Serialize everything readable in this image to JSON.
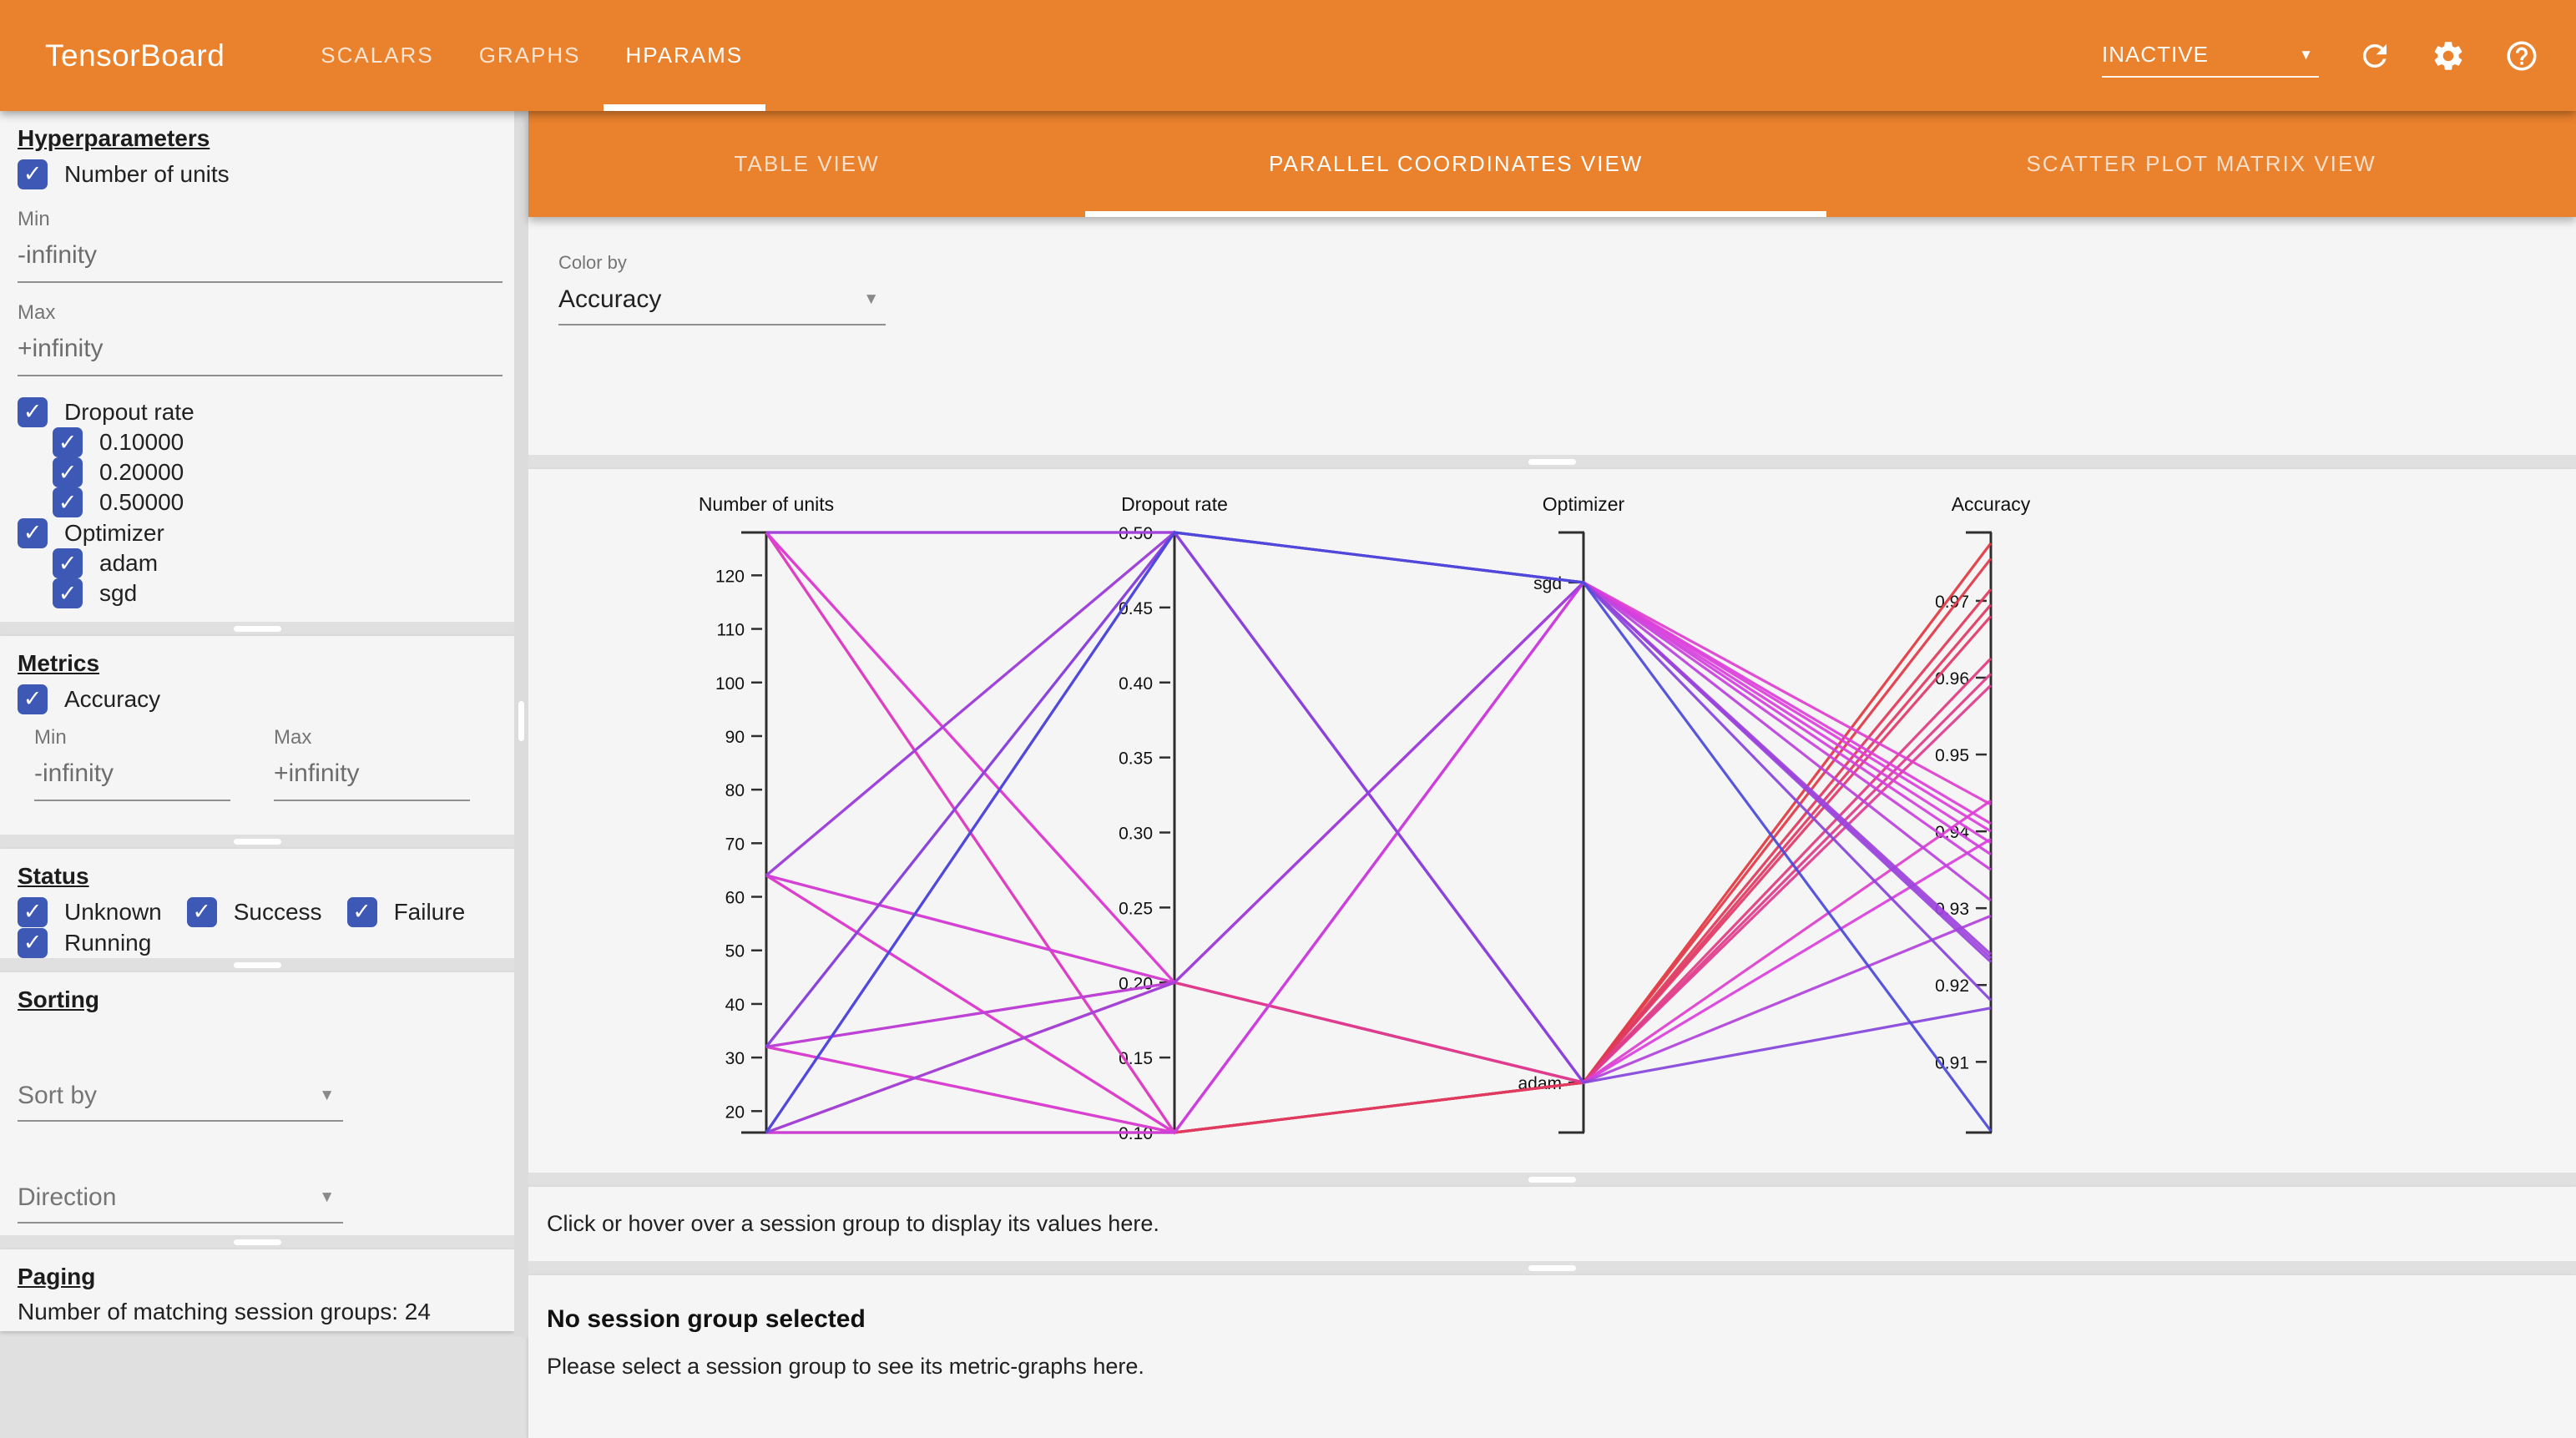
{
  "theme": {
    "header_orange": "#E9812D",
    "checkbox_blue": "#3D59B5",
    "line_color_low": "#4545DC",
    "line_color_high": "#DE5A4E",
    "panel_gray": "#f5f5f5"
  },
  "header": {
    "title": "TensorBoard",
    "tabs": [
      {
        "label": "SCALARS"
      },
      {
        "label": "GRAPHS"
      },
      {
        "label": "HPARAMS"
      }
    ],
    "active_tab": "HPARAMS",
    "run_status": "INACTIVE",
    "icons": [
      "reload-icon",
      "settings-icon",
      "help-icon"
    ]
  },
  "sidebar": {
    "hyperparameters": {
      "heading": "Hyperparameters",
      "num_units": {
        "label": "Number of units",
        "checked": true,
        "min_label": "Min",
        "min_value": "-infinity",
        "max_label": "Max",
        "max_value": "+infinity"
      },
      "dropout": {
        "label": "Dropout rate",
        "checked": true,
        "options": [
          "0.10000",
          "0.20000",
          "0.50000"
        ]
      },
      "optimizer": {
        "label": "Optimizer",
        "checked": true,
        "options": [
          "adam",
          "sgd"
        ]
      }
    },
    "metrics": {
      "heading": "Metrics",
      "accuracy_label": "Accuracy",
      "checked": true,
      "min_label": "Min",
      "min_value": "-infinity",
      "max_label": "Max",
      "max_value": "+infinity"
    },
    "status": {
      "heading": "Status",
      "options": [
        "Unknown",
        "Success",
        "Failure",
        "Running"
      ]
    },
    "sorting": {
      "heading": "Sorting",
      "sort_by_placeholder": "Sort by",
      "direction_placeholder": "Direction"
    },
    "paging": {
      "heading": "Paging",
      "summary": "Number of matching session groups: 24"
    }
  },
  "main": {
    "view_tabs": [
      {
        "label": "TABLE VIEW"
      },
      {
        "label": "PARALLEL COORDINATES VIEW"
      },
      {
        "label": "SCATTER PLOT MATRIX VIEW"
      }
    ],
    "active_view": "PARALLEL COORDINATES VIEW",
    "color_by": {
      "label": "Color by",
      "value": "Accuracy"
    },
    "hint": "Click or hover over a session group to display its values here.",
    "empty_state": {
      "title": "No session group selected",
      "body": "Please select a session group to see its metric-graphs here."
    }
  },
  "chart_data": {
    "type": "parallel_coordinates",
    "color_by": "Accuracy",
    "legend_position": "none",
    "grid": false,
    "color_scale": {
      "low_hex": "#4545DC",
      "high_hex": "#DE5A4E",
      "interpolation": "hsl-through-magenta"
    },
    "axes": [
      {
        "key": "num_units",
        "name": "Number of units",
        "type": "linear",
        "domain": [
          16,
          128
        ],
        "ticks": [
          20,
          30,
          40,
          50,
          60,
          70,
          80,
          90,
          100,
          110,
          120
        ],
        "decimals": 0
      },
      {
        "key": "dropout_rate",
        "name": "Dropout rate",
        "type": "linear",
        "domain": [
          0.1,
          0.5
        ],
        "ticks": [
          0.1,
          0.15,
          0.2,
          0.25,
          0.3,
          0.35,
          0.4,
          0.45,
          0.5
        ],
        "decimals": 2
      },
      {
        "key": "optimizer",
        "name": "Optimizer",
        "type": "categorical",
        "categories": [
          "sgd",
          "adam"
        ],
        "positions_from_top": [
          0.0833,
          0.9167
        ]
      },
      {
        "key": "accuracy",
        "name": "Accuracy",
        "type": "linear",
        "domain": [
          0.9008,
          0.9789
        ],
        "ticks": [
          0.91,
          0.92,
          0.93,
          0.94,
          0.95,
          0.96,
          0.97
        ],
        "decimals": 2
      }
    ],
    "sessions": [
      {
        "num_units": 16,
        "dropout_rate": 0.1,
        "optimizer": "adam",
        "accuracy": 0.9695
      },
      {
        "num_units": 16,
        "dropout_rate": 0.1,
        "optimizer": "sgd",
        "accuracy": 0.935
      },
      {
        "num_units": 16,
        "dropout_rate": 0.2,
        "optimizer": "adam",
        "accuracy": 0.959
      },
      {
        "num_units": 16,
        "dropout_rate": 0.2,
        "optimizer": "sgd",
        "accuracy": 0.924
      },
      {
        "num_units": 16,
        "dropout_rate": 0.5,
        "optimizer": "adam",
        "accuracy": 0.917
      },
      {
        "num_units": 16,
        "dropout_rate": 0.5,
        "optimizer": "sgd",
        "accuracy": 0.901
      },
      {
        "num_units": 32,
        "dropout_rate": 0.1,
        "optimizer": "adam",
        "accuracy": 0.9715
      },
      {
        "num_units": 32,
        "dropout_rate": 0.1,
        "optimizer": "sgd",
        "accuracy": 0.9385
      },
      {
        "num_units": 32,
        "dropout_rate": 0.2,
        "optimizer": "adam",
        "accuracy": 0.9605
      },
      {
        "num_units": 32,
        "dropout_rate": 0.2,
        "optimizer": "sgd",
        "accuracy": 0.931
      },
      {
        "num_units": 32,
        "dropout_rate": 0.5,
        "optimizer": "adam",
        "accuracy": 0.929
      },
      {
        "num_units": 32,
        "dropout_rate": 0.5,
        "optimizer": "sgd",
        "accuracy": 0.918
      },
      {
        "num_units": 64,
        "dropout_rate": 0.1,
        "optimizer": "adam",
        "accuracy": 0.9755
      },
      {
        "num_units": 64,
        "dropout_rate": 0.1,
        "optimizer": "sgd",
        "accuracy": 0.941
      },
      {
        "num_units": 64,
        "dropout_rate": 0.2,
        "optimizer": "adam",
        "accuracy": 0.9625
      },
      {
        "num_units": 64,
        "dropout_rate": 0.2,
        "optimizer": "sgd",
        "accuracy": 0.937
      },
      {
        "num_units": 64,
        "dropout_rate": 0.5,
        "optimizer": "adam",
        "accuracy": 0.939
      },
      {
        "num_units": 64,
        "dropout_rate": 0.5,
        "optimizer": "sgd",
        "accuracy": 0.923
      },
      {
        "num_units": 128,
        "dropout_rate": 0.1,
        "optimizer": "adam",
        "accuracy": 0.9775
      },
      {
        "num_units": 128,
        "dropout_rate": 0.1,
        "optimizer": "sgd",
        "accuracy": 0.9435
      },
      {
        "num_units": 128,
        "dropout_rate": 0.2,
        "optimizer": "adam",
        "accuracy": 0.968
      },
      {
        "num_units": 128,
        "dropout_rate": 0.2,
        "optimizer": "sgd",
        "accuracy": 0.94
      },
      {
        "num_units": 128,
        "dropout_rate": 0.5,
        "optimizer": "adam",
        "accuracy": 0.944
      },
      {
        "num_units": 128,
        "dropout_rate": 0.5,
        "optimizer": "sgd",
        "accuracy": 0.9235
      }
    ]
  }
}
